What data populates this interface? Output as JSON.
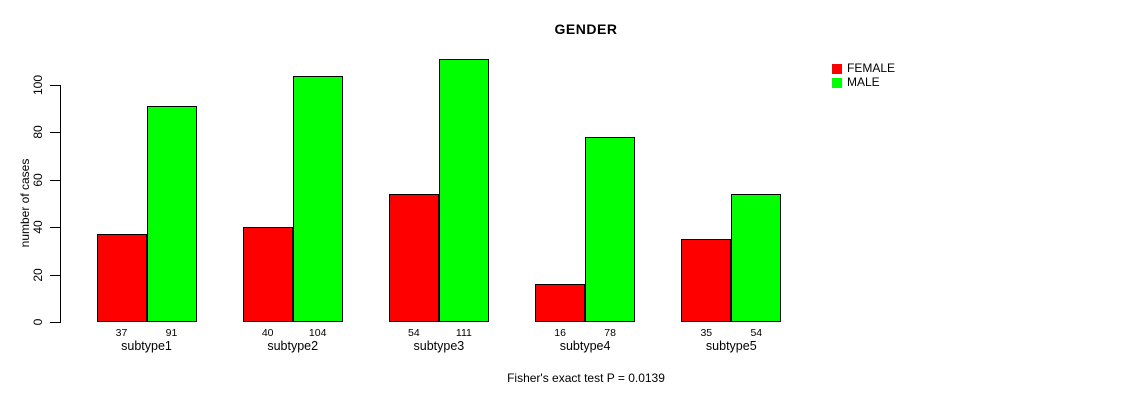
{
  "title": "GENDER",
  "ylabel": "number of cases",
  "caption": "Fisher's exact test P = 0.0139",
  "colors": {
    "female": "#ff0000",
    "male": "#00ff00",
    "axis": "#000000",
    "background": "#ffffff"
  },
  "legend": {
    "position": "top-right",
    "entries": [
      {
        "label": "FEMALE",
        "color": "#ff0000"
      },
      {
        "label": "MALE",
        "color": "#00ff00"
      }
    ]
  },
  "chart_data": {
    "type": "bar",
    "grouped": true,
    "title": "GENDER",
    "xlabel": "",
    "ylabel": "number of cases",
    "categories": [
      "subtype1",
      "subtype2",
      "subtype3",
      "subtype4",
      "subtype5"
    ],
    "series": [
      {
        "name": "FEMALE",
        "color": "#ff0000",
        "values": [
          37,
          40,
          54,
          16,
          35
        ]
      },
      {
        "name": "MALE",
        "color": "#00ff00",
        "values": [
          91,
          104,
          111,
          78,
          54
        ]
      }
    ],
    "bar_value_labels": true,
    "yticks": [
      0,
      20,
      40,
      60,
      80,
      100
    ],
    "ylim": [
      0,
      100
    ],
    "grid": false,
    "legend_position": "top-right",
    "annotation": "Fisher's exact test P = 0.0139"
  }
}
